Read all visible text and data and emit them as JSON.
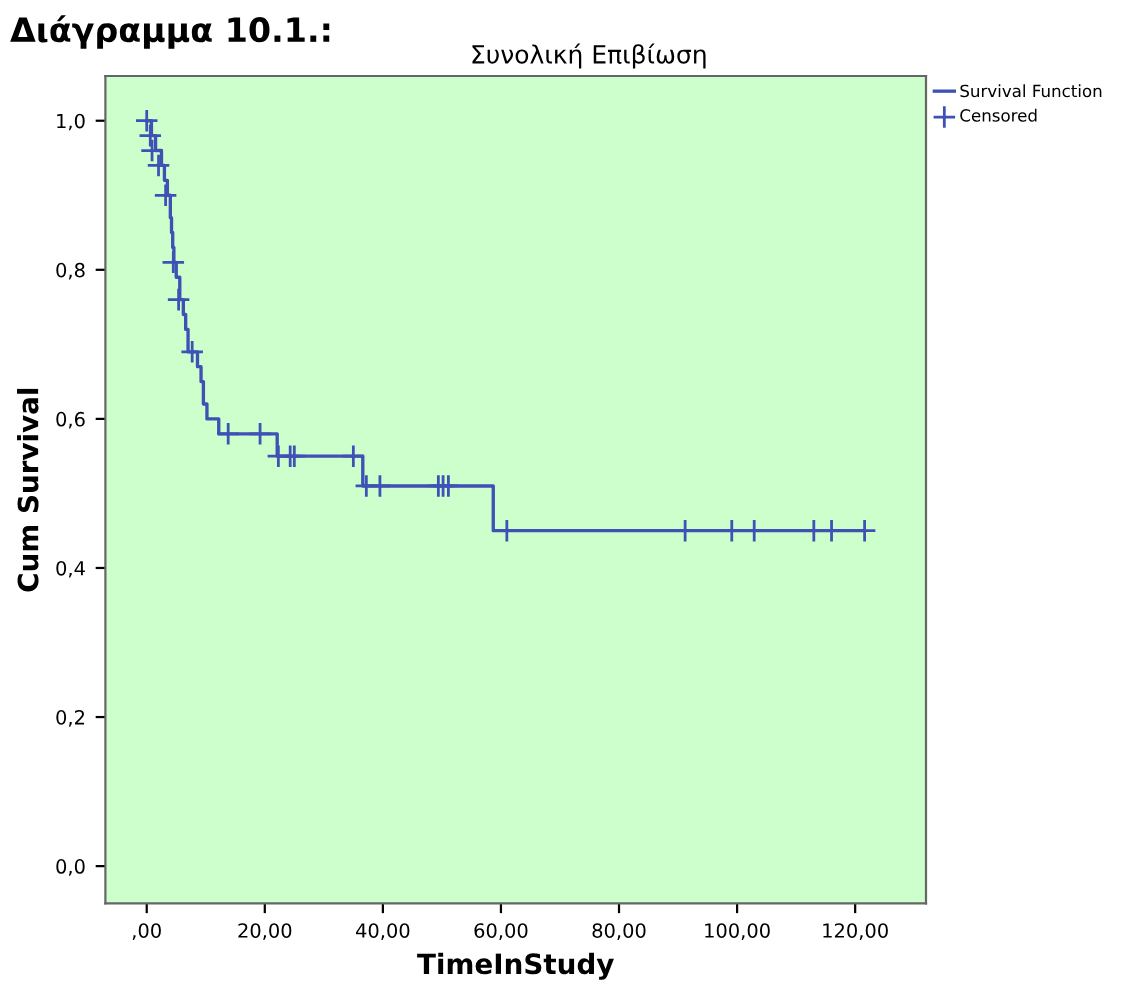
{
  "chart_data": {
    "type": "step",
    "title": "Διάγραμμα 10.1.:",
    "subtitle": "Συνολική Επιβίωση",
    "xlabel": "TimeInStudy",
    "ylabel": "Cum Survival",
    "series": [
      {
        "name": "Survival Function",
        "color": "#3f51b5",
        "line_style": "solid",
        "x": [
          0,
          0.8,
          1.5,
          2.5,
          3.0,
          3.5,
          4.0,
          4.2,
          4.4,
          4.6,
          5.0,
          5.6,
          6.2,
          6.6,
          7.0,
          8.6,
          9.2,
          9.6,
          10.2,
          12.2,
          22.1,
          36.6,
          58.7,
          121.6
        ],
        "values": [
          1.0,
          0.98,
          0.96,
          0.94,
          0.92,
          0.9,
          0.87,
          0.85,
          0.83,
          0.81,
          0.79,
          0.76,
          0.74,
          0.72,
          0.69,
          0.67,
          0.65,
          0.62,
          0.6,
          0.58,
          0.55,
          0.51,
          0.45,
          0.45
        ]
      },
      {
        "name": "Censored",
        "type": "scatter",
        "color": "#3f51b5",
        "marker": "cross",
        "x": [
          0,
          0.6,
          0.9,
          2.0,
          3.2,
          4.5,
          5.4,
          7.7,
          13.8,
          19.2,
          22.3,
          24.3,
          25.0,
          35.0,
          37.2,
          39.5,
          49.4,
          50.2,
          51.1,
          61.0,
          91.2,
          99.1,
          102.9,
          113.0,
          116.0,
          121.6
        ],
        "values": [
          1.0,
          0.98,
          0.96,
          0.94,
          0.9,
          0.81,
          0.76,
          0.69,
          0.58,
          0.58,
          0.55,
          0.55,
          0.55,
          0.55,
          0.51,
          0.51,
          0.51,
          0.51,
          0.51,
          0.45,
          0.45,
          0.45,
          0.45,
          0.45,
          0.45,
          0.45
        ]
      }
    ],
    "xlim": [
      -7,
      132
    ],
    "ylim": [
      -0.05,
      1.06
    ],
    "xticks": [
      {
        "value": 0,
        "label": ",00"
      },
      {
        "value": 20,
        "label": "20,00"
      },
      {
        "value": 40,
        "label": "40,00"
      },
      {
        "value": 60,
        "label": "60,00"
      },
      {
        "value": 80,
        "label": "80,00"
      },
      {
        "value": 100,
        "label": "100,00"
      },
      {
        "value": 120,
        "label": "120,00"
      }
    ],
    "yticks": [
      {
        "value": 0,
        "label": "0,0"
      },
      {
        "value": 0.2,
        "label": "0,2"
      },
      {
        "value": 0.4,
        "label": "0,4"
      },
      {
        "value": 0.6,
        "label": "0,6"
      },
      {
        "value": 0.8,
        "label": "0,8"
      },
      {
        "value": 1.0,
        "label": "1,0"
      }
    ],
    "grid": false,
    "legend": "top right"
  }
}
